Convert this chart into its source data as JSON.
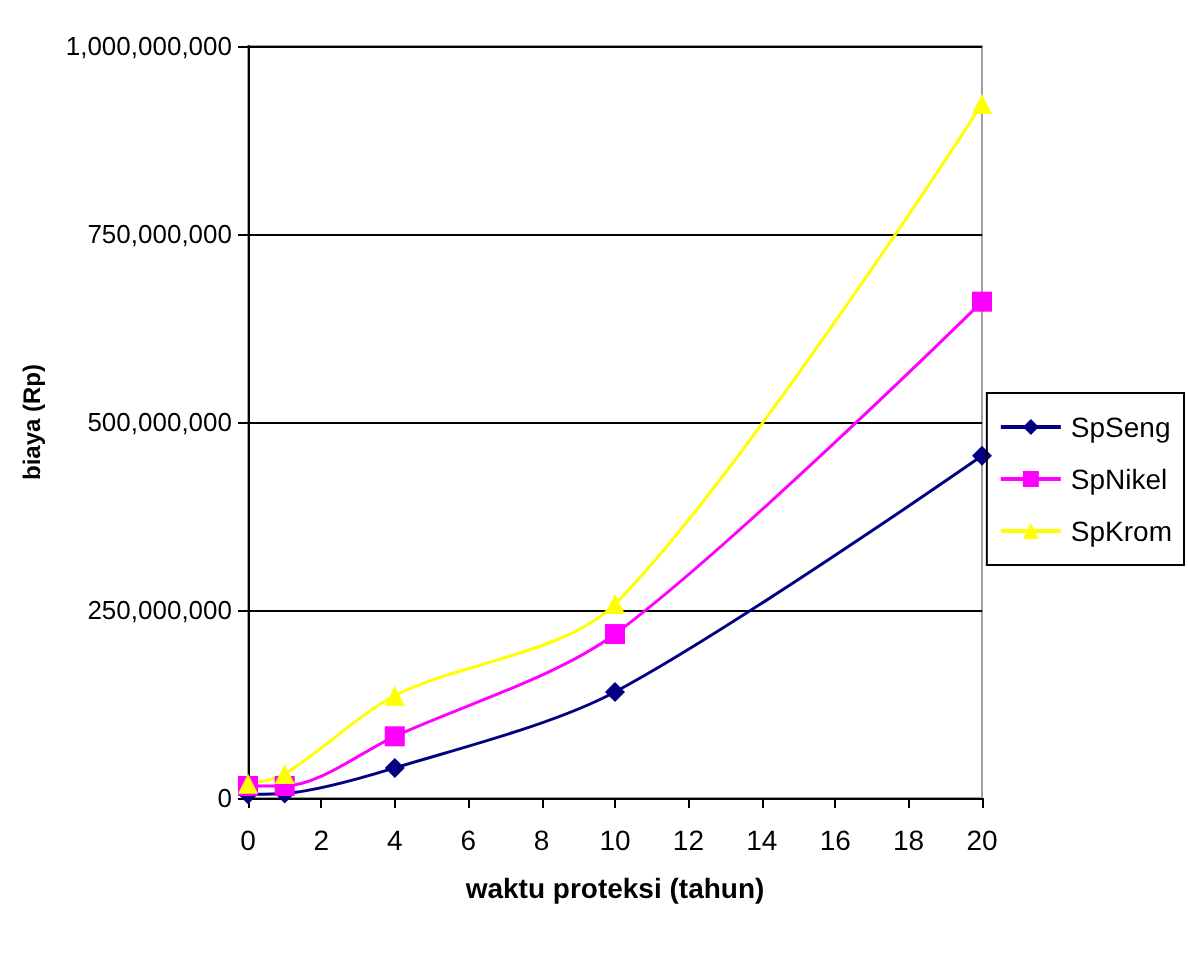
{
  "chart_data": {
    "type": "line",
    "xlabel": "waktu proteksi (tahun)",
    "ylabel": "biaya (Rp)",
    "x": [
      0,
      1,
      4,
      10,
      20
    ],
    "series": [
      {
        "name": "SpSeng",
        "color": "#000080",
        "marker": "diamond",
        "values": [
          5000000,
          6000000,
          40000000,
          141000000,
          455000000
        ]
      },
      {
        "name": "SpNikel",
        "color": "#ff00ff",
        "marker": "square",
        "values": [
          16000000,
          16000000,
          82000000,
          218000000,
          660000000
        ]
      },
      {
        "name": "SpKrom",
        "color": "#ffff00",
        "marker": "triangle",
        "values": [
          19000000,
          32000000,
          136000000,
          258000000,
          923000000
        ]
      }
    ],
    "xlim": [
      0,
      20
    ],
    "xticks": [
      0,
      2,
      4,
      6,
      8,
      10,
      12,
      14,
      16,
      18,
      20
    ],
    "ylim": [
      0,
      1000000000
    ],
    "yticks": [
      0,
      {
        "value": 250000000,
        "label": "250,000,000"
      },
      {
        "value": 500000000,
        "label": "500,000,000"
      },
      {
        "value": 750000000,
        "label": "750,000,000"
      },
      {
        "value": 1000000000,
        "label": "1,000,000,000"
      }
    ],
    "grid": "y",
    "legend": "right"
  }
}
